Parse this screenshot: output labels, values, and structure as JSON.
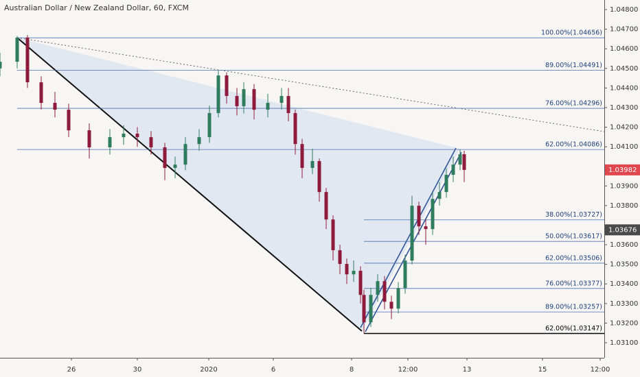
{
  "chart_data": {
    "type": "candlestick",
    "title": "Australian Dollar / New Zealand Dollar, 60, FXCM",
    "up_color": "#2f7d5e",
    "down_color": "#8e1b3c",
    "x": [
      0,
      6.25,
      10,
      15,
      20,
      25,
      32.5,
      40,
      45,
      50,
      55,
      60,
      63.75,
      67.5,
      72.5,
      76.25,
      79.5,
      82.5,
      86.25,
      88.75,
      92.5,
      97.5,
      102.5,
      105,
      107.5,
      110,
      113.75,
      116.25,
      118.75,
      121.25,
      123.75,
      126.25,
      128.75,
      131.25,
      132.5,
      135,
      137.5,
      140,
      142.5,
      145,
      147.5,
      150,
      152.5,
      155,
      157.5,
      160,
      162.5,
      165,
      167.5,
      169
    ],
    "open": [
      1.045,
      1.04534,
      1.04657,
      1.04429,
      1.04324,
      1.04289,
      1.04184,
      1.04097,
      1.04149,
      1.04167,
      1.04149,
      1.04097,
      1.03992,
      1.04009,
      1.04114,
      1.04149,
      1.04272,
      1.04464,
      1.04359,
      1.04307,
      1.04394,
      1.04289,
      1.04324,
      1.04359,
      1.04272,
      1.04114,
      1.03992,
      1.04027,
      1.03869,
      1.03729,
      1.03572,
      1.03502,
      1.03449,
      1.03467,
      1.03344,
      1.03204,
      1.03344,
      1.03414,
      1.03309,
      1.03274,
      1.03379,
      1.03519,
      1.03799,
      1.03694,
      1.0368,
      1.03834,
      1.03869,
      1.03957,
      1.04009,
      1.04062
    ],
    "high": [
      1.0458,
      1.04665,
      1.0467,
      1.0446,
      1.0438,
      1.0432,
      1.0422,
      1.0419,
      1.0421,
      1.042,
      1.0418,
      1.0412,
      1.0405,
      1.0415,
      1.0419,
      1.0431,
      1.04491,
      1.0448,
      1.044,
      1.0443,
      1.0442,
      1.0437,
      1.044,
      1.044,
      1.0429,
      1.0414,
      1.0409,
      1.0404,
      1.0389,
      1.0375,
      1.036,
      1.0353,
      1.0352,
      1.0349,
      1.0337,
      1.0338,
      1.0345,
      1.0344,
      1.0334,
      1.0341,
      1.0355,
      1.0385,
      1.0382,
      1.0373,
      1.0387,
      1.0392,
      1.0399,
      1.0405,
      1.04086,
      1.0408
    ],
    "low": [
      1.0446,
      1.045,
      1.044,
      1.0429,
      1.0425,
      1.0415,
      1.0404,
      1.0406,
      1.0411,
      1.041,
      1.0406,
      1.0393,
      1.0394,
      1.0398,
      1.0408,
      1.0412,
      1.0425,
      1.0432,
      1.0426,
      1.0427,
      1.0424,
      1.0425,
      1.0429,
      1.0423,
      1.0406,
      1.0394,
      1.0396,
      1.0382,
      1.0368,
      1.0352,
      1.0345,
      1.034,
      1.0341,
      1.033,
      1.03147,
      1.0318,
      1.0331,
      1.0327,
      1.0322,
      1.0325,
      1.0335,
      1.035,
      1.0365,
      1.036,
      1.0365,
      1.038,
      1.0384,
      1.0392,
      1.0398,
      1.0392
    ],
    "close": [
      1.04534,
      1.04657,
      1.04429,
      1.04324,
      1.04289,
      1.04184,
      1.04097,
      1.04149,
      1.04167,
      1.04149,
      1.04097,
      1.03992,
      1.04009,
      1.04114,
      1.04149,
      1.04272,
      1.04464,
      1.04359,
      1.04307,
      1.04394,
      1.04289,
      1.04324,
      1.04359,
      1.04272,
      1.04114,
      1.03992,
      1.04027,
      1.03869,
      1.03729,
      1.03572,
      1.03502,
      1.03449,
      1.03467,
      1.03344,
      1.03204,
      1.03344,
      1.03414,
      1.03309,
      1.03274,
      1.03379,
      1.03519,
      1.03799,
      1.03694,
      1.0368,
      1.03834,
      1.03869,
      1.03957,
      1.04009,
      1.04062,
      1.03982
    ],
    "xlim": [
      0,
      220
    ],
    "xticks": [
      {
        "value": 26,
        "label": "26"
      },
      {
        "value": 50,
        "label": "30"
      },
      {
        "value": 76,
        "label": "2020"
      },
      {
        "value": 99.5,
        "label": "6"
      },
      {
        "value": 128,
        "label": "8"
      },
      {
        "value": 148.5,
        "label": "12:00"
      },
      {
        "value": 170,
        "label": "13"
      },
      {
        "value": 197.5,
        "label": "15"
      },
      {
        "value": 218.5,
        "label": "12:00"
      }
    ],
    "ylim": [
      1.03023,
      1.04849
    ],
    "yticks": [
      {
        "value": 1.048,
        "label": "1.04800"
      },
      {
        "value": 1.047,
        "label": "1.04700"
      },
      {
        "value": 1.046,
        "label": "1.04600"
      },
      {
        "value": 1.045,
        "label": "1.04500"
      },
      {
        "value": 1.044,
        "label": "1.04400"
      },
      {
        "value": 1.043,
        "label": "1.04300"
      },
      {
        "value": 1.042,
        "label": "1.04200"
      },
      {
        "value": 1.041,
        "label": "1.04100"
      },
      {
        "value": 1.039,
        "label": "1.03900"
      },
      {
        "value": 1.038,
        "label": "1.03800"
      },
      {
        "value": 1.036,
        "label": "1.03600"
      },
      {
        "value": 1.035,
        "label": "1.03500"
      },
      {
        "value": 1.034,
        "label": "1.03400"
      },
      {
        "value": 1.033,
        "label": "1.03300"
      },
      {
        "value": 1.032,
        "label": "1.03200"
      },
      {
        "value": 1.031,
        "label": "1.03100"
      }
    ],
    "fib_upper": [
      {
        "value": 1.04656,
        "label": "100.00%(1.04656)"
      },
      {
        "value": 1.04491,
        "label": "89.00%(1.04491)"
      },
      {
        "value": 1.04296,
        "label": "76.00%(1.04296)"
      },
      {
        "value": 1.04086,
        "label": "62.00%(1.04086)"
      }
    ],
    "fib_lower": [
      {
        "value": 1.03727,
        "label": "38.00%(1.03727)"
      },
      {
        "value": 1.03617,
        "label": "50.00%(1.03617)"
      },
      {
        "value": 1.03506,
        "label": "62.00%(1.03506)"
      },
      {
        "value": 1.03377,
        "label": "76.00%(1.03377)"
      },
      {
        "value": 1.03257,
        "label": "89.00%(1.03257)"
      },
      {
        "value": 1.03147,
        "label": "62.00%(1.03147)",
        "color": "#000000"
      }
    ],
    "fib_color": "#4a6fb0",
    "badges": [
      {
        "value": 1.03982,
        "label": "1.03982",
        "color": "#e0484e"
      },
      {
        "value": 1.03676,
        "label": "1.03676",
        "color": "#4a4a4a"
      }
    ]
  }
}
